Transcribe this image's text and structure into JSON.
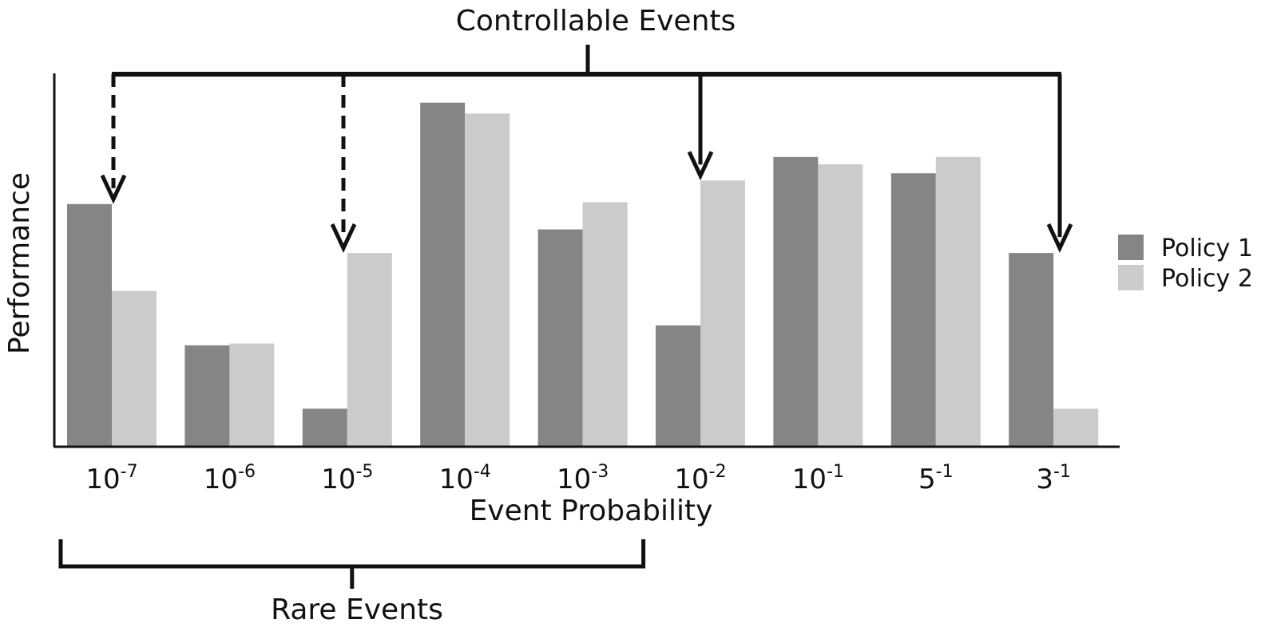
{
  "chart_data": {
    "type": "bar",
    "xlabel": "Event Probability",
    "ylabel": "Performance",
    "categories": [
      {
        "base": "10",
        "exp": "-7"
      },
      {
        "base": "10",
        "exp": "-6"
      },
      {
        "base": "10",
        "exp": "-5"
      },
      {
        "base": "10",
        "exp": "-4"
      },
      {
        "base": "10",
        "exp": "-3"
      },
      {
        "base": "10",
        "exp": "-2"
      },
      {
        "base": "10",
        "exp": "-1"
      },
      {
        "base": "5",
        "exp": "-1"
      },
      {
        "base": "3",
        "exp": "-1"
      }
    ],
    "series": [
      {
        "name": "Policy 1",
        "color": "#858585",
        "values": [
          67,
          28,
          10.5,
          95,
          60,
          33.5,
          80,
          75.5,
          53.5
        ]
      },
      {
        "name": "Policy 2",
        "color": "#cbcbcb",
        "values": [
          43,
          28.5,
          53.5,
          92,
          67.5,
          73.5,
          78,
          80,
          10.5
        ]
      }
    ],
    "ylim": [
      0,
      100
    ],
    "grid": false,
    "legend_position": "right",
    "annotations": {
      "controllable_label": "Controllable Events",
      "rare_label": "Rare Events",
      "controllable_targets": [
        {
          "category_index": 0,
          "style": "dashed"
        },
        {
          "category_index": 2,
          "style": "dashed"
        },
        {
          "category_index": 5,
          "style": "solid"
        },
        {
          "category_index": 8,
          "style": "solid"
        }
      ],
      "rare_range": [
        0,
        4
      ]
    }
  }
}
